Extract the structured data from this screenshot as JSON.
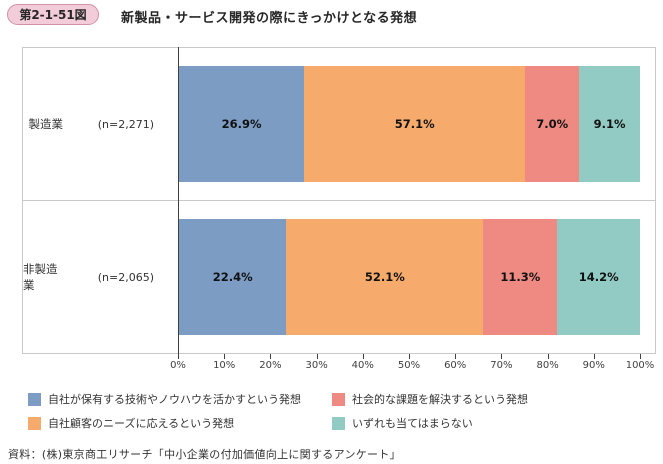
{
  "header": {
    "badge": "第2-1-51図",
    "title": "新製品・サービス開発の際にきっかけとなる発想"
  },
  "colors": {
    "badge_bg": "#f2ccd8",
    "badge_border": "#d291aa",
    "series_blue": "#7c9cc4",
    "series_orange": "#f6ab6c",
    "series_red": "#ee8a81",
    "series_teal": "#91cbc4",
    "frame_gray": "#c9c9c9",
    "axis_dark": "#404040"
  },
  "chart_data": {
    "type": "bar",
    "orientation": "horizontal",
    "stacked": true,
    "title": "新製品・サービス開発の際にきっかけとなる発想",
    "categories": [
      "製造業",
      "非製造業"
    ],
    "sample_sizes": [
      "(n=2,271)",
      "(n=2,065)"
    ],
    "series": [
      {
        "name": "自社が保有する技術やノウハウを活かすという発想",
        "color": "#7c9cc4",
        "values": [
          26.9,
          22.4
        ]
      },
      {
        "name": "自社顧客のニーズに応えるという発想",
        "color": "#f6ab6c",
        "values": [
          57.1,
          52.1
        ]
      },
      {
        "name": "社会的な課題を解決するという発想",
        "color": "#ee8a81",
        "values": [
          7.0,
          11.3
        ]
      },
      {
        "name": "いずれも当てはまらない",
        "color": "#91cbc4",
        "values": [
          9.1,
          14.2
        ]
      }
    ],
    "value_labels": [
      [
        "26.9%",
        "57.1%",
        "7.0%",
        "9.1%"
      ],
      [
        "22.4%",
        "52.1%",
        "11.3%",
        "14.2%"
      ]
    ],
    "x_ticks": [
      "0%",
      "10%",
      "20%",
      "30%",
      "40%",
      "50%",
      "60%",
      "70%",
      "80%",
      "90%",
      "100%"
    ],
    "xlim": [
      0,
      100
    ],
    "grid": false,
    "legend_position": "bottom",
    "legend_columns": 2
  },
  "footer": {
    "source": "資料：(株)東京商工リサーチ「中小企業の付加価値向上に関するアンケート」"
  }
}
